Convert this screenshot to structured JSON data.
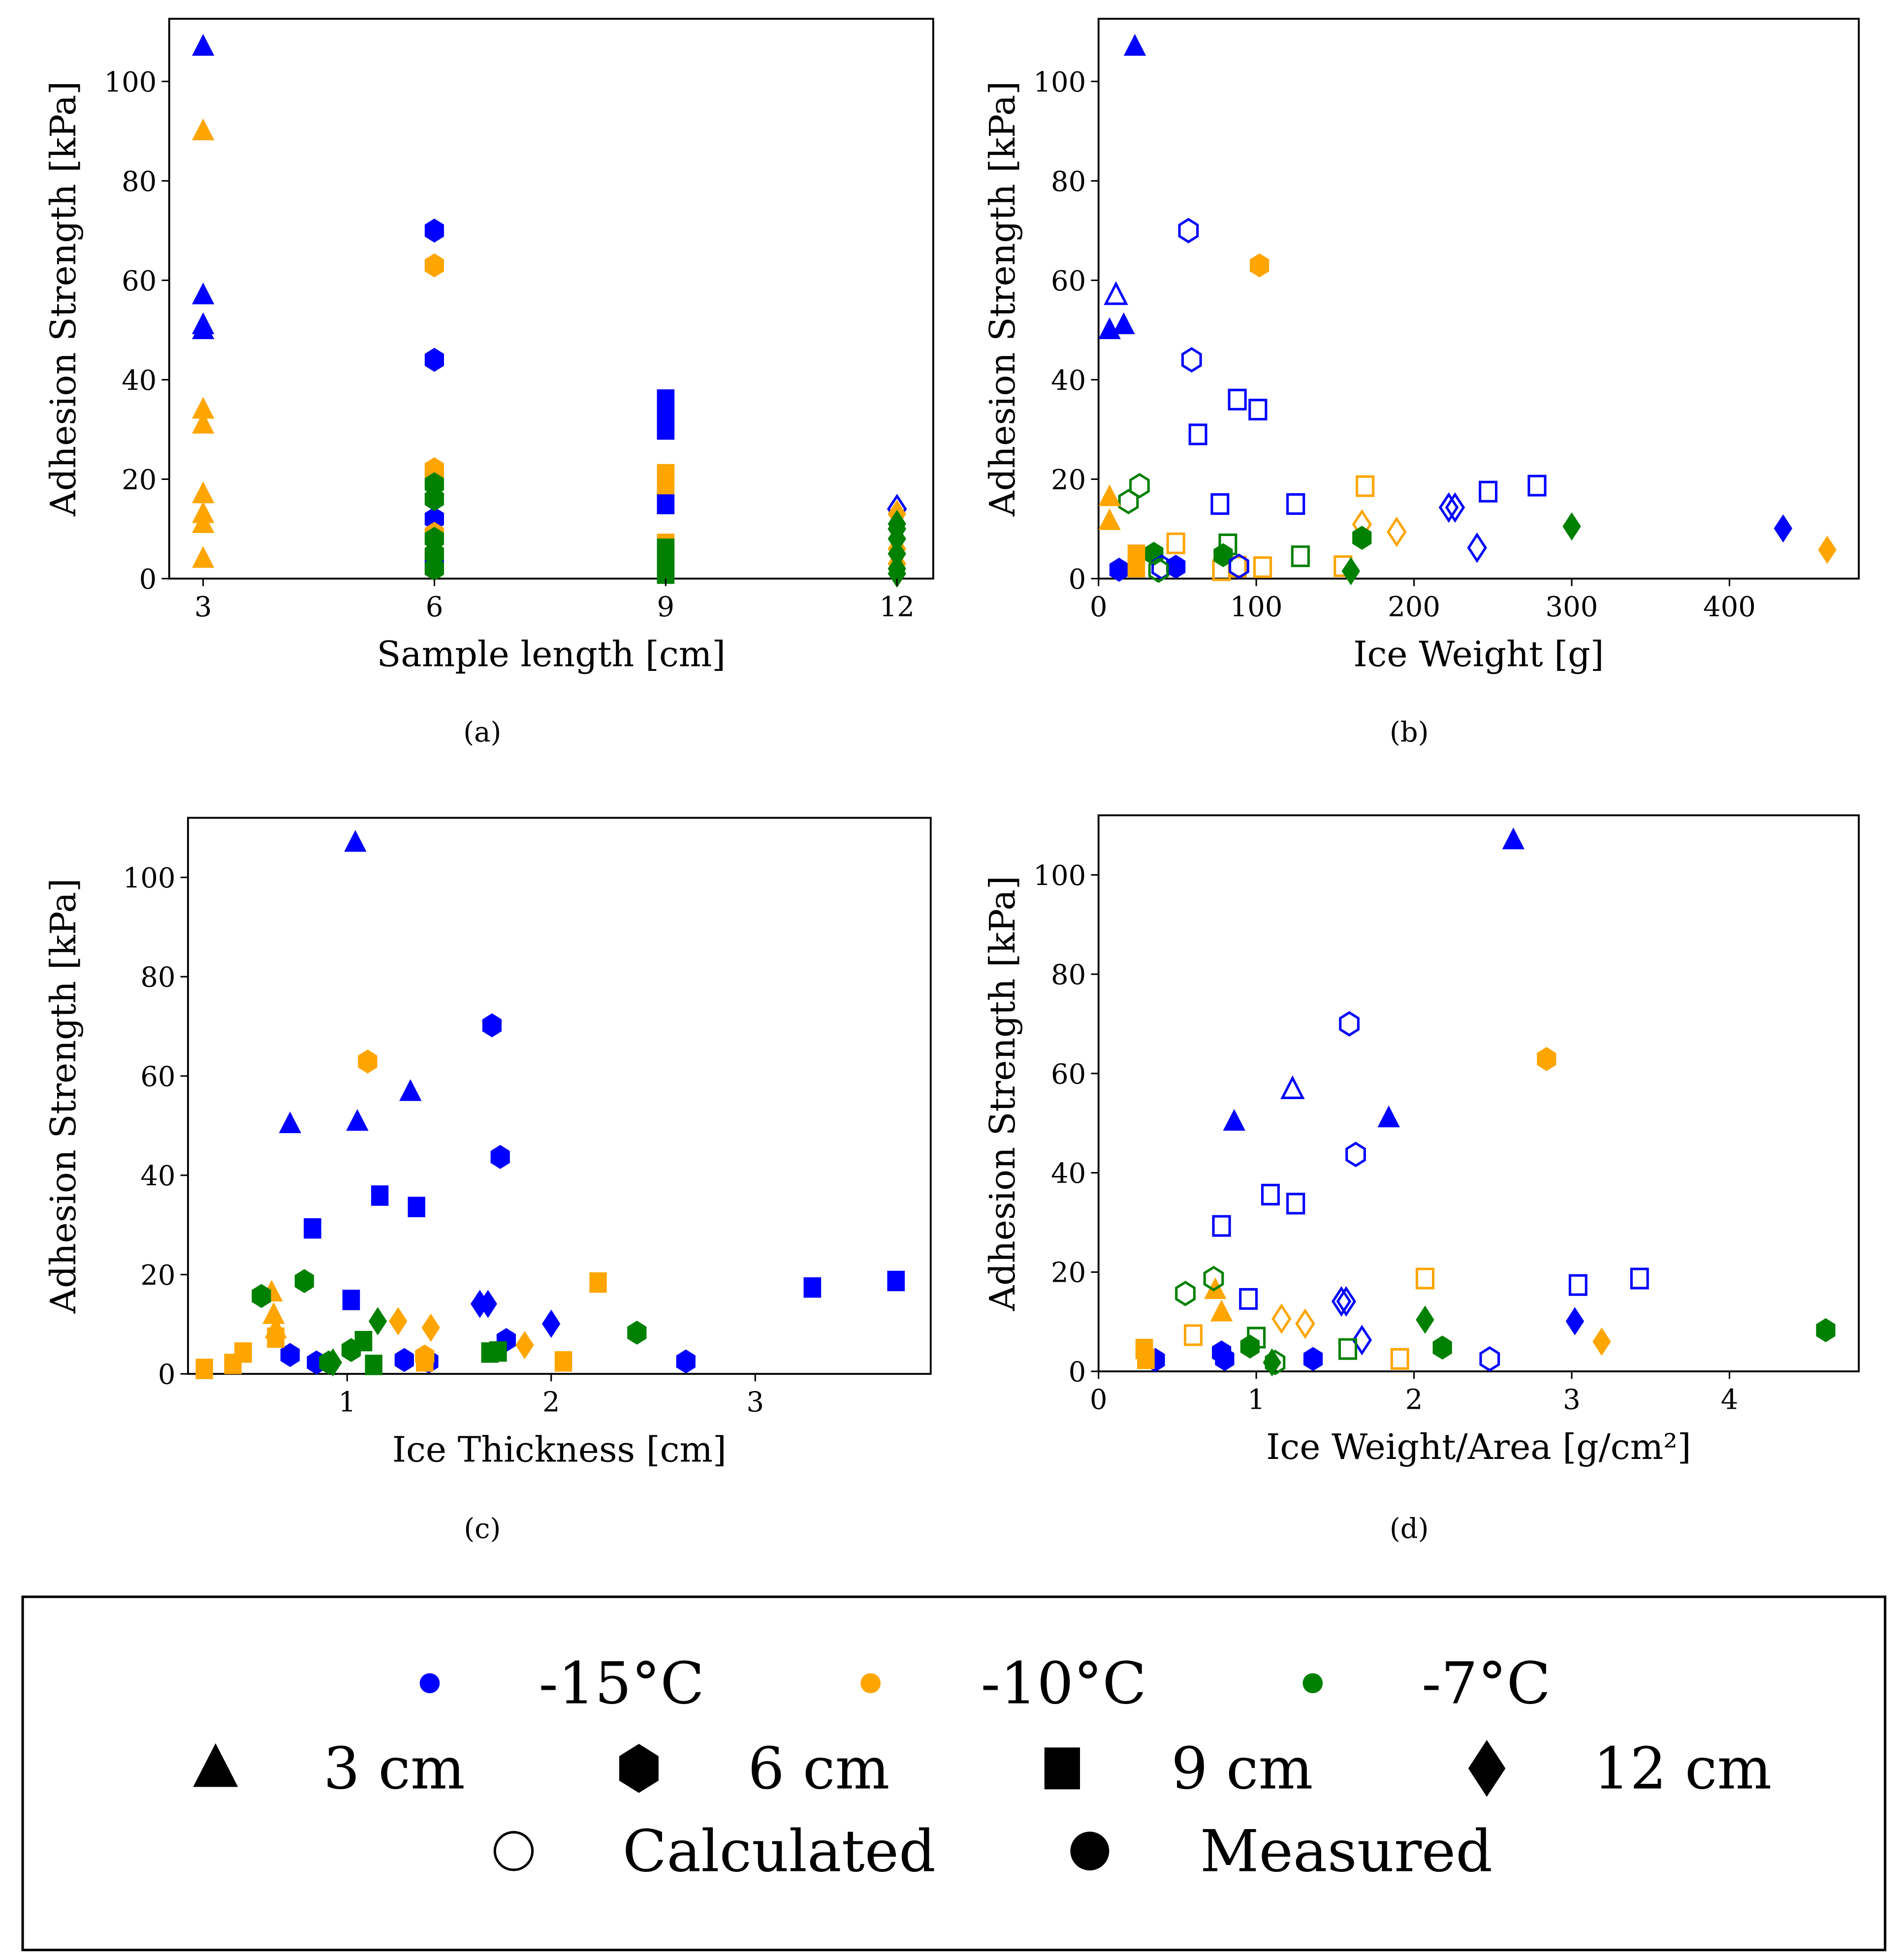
{
  "colors": {
    "b": "#0000ff",
    "o": "#ffa500",
    "g": "#008000"
  },
  "chart_data": [
    {
      "type": "scatter",
      "caption": "(a)",
      "xlabel": "Sample length [cm]",
      "ylabel": "Adhesion Strength [kPa]",
      "xlim": [
        2.56,
        12.47
      ],
      "ylim": [
        0,
        112.6
      ],
      "xticks": [
        3,
        6,
        9,
        12
      ],
      "yticks": [
        0,
        20,
        40,
        60,
        80,
        100
      ],
      "points": [
        [
          3,
          107,
          "b",
          "tri",
          1
        ],
        [
          3,
          57,
          "b",
          "tri",
          1
        ],
        [
          3,
          51,
          "b",
          "tri",
          1
        ],
        [
          3,
          50,
          "b",
          "tri",
          1
        ],
        [
          3,
          90,
          "o",
          "tri",
          1
        ],
        [
          3,
          34,
          "o",
          "tri",
          1
        ],
        [
          3,
          31,
          "o",
          "tri",
          1
        ],
        [
          3,
          17,
          "o",
          "tri",
          1
        ],
        [
          3,
          13,
          "o",
          "tri",
          1
        ],
        [
          3,
          11,
          "o",
          "tri",
          1
        ],
        [
          3,
          4,
          "o",
          "tri",
          1
        ],
        [
          6,
          70,
          "b",
          "hex",
          1
        ],
        [
          6,
          44,
          "b",
          "hex",
          1
        ],
        [
          6,
          12,
          "b",
          "hex",
          1
        ],
        [
          6,
          3,
          "b",
          "hex",
          1
        ],
        [
          6,
          63,
          "o",
          "hex",
          1
        ],
        [
          6,
          22,
          "o",
          "hex",
          1
        ],
        [
          6,
          20,
          "o",
          "hex",
          1
        ],
        [
          6,
          9,
          "o",
          "hex",
          1
        ],
        [
          6,
          5,
          "o",
          "hex",
          1
        ],
        [
          6,
          2,
          "o",
          "hex",
          1
        ],
        [
          6,
          19,
          "g",
          "hex",
          1
        ],
        [
          6,
          16,
          "g",
          "hex",
          1
        ],
        [
          6,
          8,
          "g",
          "hex",
          1
        ],
        [
          6,
          5,
          "g",
          "hex",
          1
        ],
        [
          6,
          2,
          "g",
          "hex",
          1
        ],
        [
          9,
          36,
          "b",
          "sq",
          1
        ],
        [
          9,
          34,
          "b",
          "sq",
          1
        ],
        [
          9,
          32,
          "b",
          "sq",
          1
        ],
        [
          9,
          30,
          "b",
          "sq",
          1
        ],
        [
          9,
          15,
          "b",
          "sq",
          1
        ],
        [
          9,
          21,
          "o",
          "sq",
          1
        ],
        [
          9,
          19,
          "o",
          "sq",
          1
        ],
        [
          9,
          7,
          "o",
          "sq",
          1
        ],
        [
          9,
          6,
          "g",
          "sq",
          1
        ],
        [
          9,
          5,
          "g",
          "sq",
          1
        ],
        [
          9,
          3,
          "g",
          "sq",
          1
        ],
        [
          9,
          1,
          "g",
          "sq",
          1
        ],
        [
          12,
          14,
          "b",
          "dia",
          0
        ],
        [
          12,
          10,
          "b",
          "dia",
          1
        ],
        [
          12,
          13,
          "o",
          "dia",
          1
        ],
        [
          12,
          6,
          "o",
          "dia",
          1
        ],
        [
          12,
          3,
          "o",
          "dia",
          1
        ],
        [
          12,
          11,
          "g",
          "dia",
          1
        ],
        [
          12,
          10,
          "g",
          "dia",
          1
        ],
        [
          12,
          8,
          "g",
          "dia",
          1
        ],
        [
          12,
          5,
          "g",
          "dia",
          1
        ],
        [
          12,
          2,
          "g",
          "dia",
          1
        ],
        [
          12,
          1,
          "g",
          "dia",
          1
        ]
      ]
    },
    {
      "type": "scatter",
      "caption": "(b)",
      "xlabel": "Ice Weight [g]",
      "ylabel": "Adhesion Strength [kPa]",
      "xlim": [
        0,
        482
      ],
      "ylim": [
        0,
        112.6
      ],
      "xticks": [
        0,
        100,
        200,
        300,
        400
      ],
      "yticks": [
        0,
        20,
        40,
        60,
        80,
        100
      ],
      "points": [
        [
          23,
          107,
          "b",
          "tri",
          1
        ],
        [
          11,
          57,
          "b",
          "tri",
          0
        ],
        [
          7,
          50,
          "b",
          "tri",
          1
        ],
        [
          16,
          51,
          "b",
          "tri",
          1
        ],
        [
          57,
          70,
          "b",
          "hex",
          0
        ],
        [
          59,
          44,
          "b",
          "hex",
          0
        ],
        [
          102,
          63,
          "o",
          "hex",
          1
        ],
        [
          88,
          36,
          "b",
          "sq",
          0
        ],
        [
          101,
          34,
          "b",
          "sq",
          0
        ],
        [
          63,
          29,
          "b",
          "sq",
          0
        ],
        [
          77,
          15,
          "b",
          "sq",
          0
        ],
        [
          125,
          15,
          "b",
          "sq",
          0
        ],
        [
          247,
          17.5,
          "b",
          "sq",
          0
        ],
        [
          278,
          18.7,
          "b",
          "sq",
          0
        ],
        [
          169,
          18.6,
          "o",
          "sq",
          0
        ],
        [
          26,
          18.7,
          "g",
          "hex",
          0
        ],
        [
          19,
          15.5,
          "g",
          "hex",
          0
        ],
        [
          7,
          16.4,
          "o",
          "tri",
          1
        ],
        [
          7,
          11.6,
          "o",
          "tri",
          1
        ],
        [
          167,
          10.9,
          "o",
          "dia",
          0
        ],
        [
          189,
          9.4,
          "o",
          "dia",
          0
        ],
        [
          167,
          8.2,
          "g",
          "hex",
          1
        ],
        [
          222,
          14.3,
          "b",
          "dia",
          0
        ],
        [
          226,
          14.3,
          "b",
          "dia",
          0
        ],
        [
          240,
          6.2,
          "b",
          "dia",
          0
        ],
        [
          300,
          10.5,
          "g",
          "dia",
          1
        ],
        [
          434,
          10.1,
          "b",
          "dia",
          1
        ],
        [
          462,
          5.8,
          "o",
          "dia",
          1
        ],
        [
          49,
          7.1,
          "o",
          "sq",
          0
        ],
        [
          82,
          6.9,
          "g",
          "sq",
          0
        ],
        [
          128,
          4.5,
          "g",
          "sq",
          0
        ],
        [
          104,
          2.3,
          "o",
          "sq",
          0
        ],
        [
          78,
          1.7,
          "o",
          "sq",
          0
        ],
        [
          88,
          2.4,
          "o",
          "sq",
          0
        ],
        [
          155,
          2.5,
          "o",
          "sq",
          0
        ],
        [
          35,
          5,
          "g",
          "hex",
          1
        ],
        [
          79,
          4.7,
          "g",
          "hex",
          1
        ],
        [
          160,
          1.5,
          "g",
          "dia",
          1
        ],
        [
          49,
          2.4,
          "b",
          "hex",
          1
        ],
        [
          13,
          1.8,
          "b",
          "hex",
          1
        ],
        [
          24,
          4.8,
          "o",
          "sq",
          1
        ],
        [
          24,
          2.3,
          "o",
          "sq",
          1
        ],
        [
          40,
          2.3,
          "b",
          "hex",
          0
        ],
        [
          89,
          2.5,
          "b",
          "hex",
          0
        ],
        [
          38,
          1.7,
          "g",
          "hex",
          0
        ]
      ]
    },
    {
      "type": "scatter",
      "caption": "(c)",
      "xlabel": "Ice Thickness [cm]",
      "ylabel": "Adhesion Strength [kPa]",
      "xlim": [
        0.22,
        3.86
      ],
      "ylim": [
        0,
        112
      ],
      "xticks": [
        1,
        2,
        3
      ],
      "yticks": [
        0,
        20,
        40,
        60,
        80,
        100
      ],
      "points": [
        [
          1.04,
          107,
          "b",
          "tri",
          1
        ],
        [
          1.31,
          56.8,
          "b",
          "tri",
          1
        ],
        [
          0.72,
          50.3,
          "b",
          "tri",
          1
        ],
        [
          1.05,
          50.8,
          "b",
          "tri",
          1
        ],
        [
          1.71,
          70.2,
          "b",
          "hex",
          1
        ],
        [
          1.75,
          43.7,
          "b",
          "hex",
          1
        ],
        [
          0.72,
          3.8,
          "b",
          "hex",
          1
        ],
        [
          0.85,
          2.3,
          "b",
          "hex",
          1
        ],
        [
          1.28,
          2.8,
          "b",
          "hex",
          1
        ],
        [
          1.4,
          2.5,
          "b",
          "hex",
          1
        ],
        [
          2.66,
          2.5,
          "b",
          "hex",
          1
        ],
        [
          1.78,
          6.8,
          "b",
          "hex",
          1
        ],
        [
          0.83,
          29.3,
          "b",
          "sq",
          1
        ],
        [
          1.16,
          35.9,
          "b",
          "sq",
          1
        ],
        [
          1.34,
          33.6,
          "b",
          "sq",
          1
        ],
        [
          1.02,
          14.9,
          "b",
          "sq",
          1
        ],
        [
          3.28,
          17.4,
          "b",
          "sq",
          1
        ],
        [
          3.69,
          18.7,
          "b",
          "sq",
          1
        ],
        [
          1.65,
          14.1,
          "b",
          "dia",
          1
        ],
        [
          1.69,
          14.1,
          "b",
          "dia",
          1
        ],
        [
          2.0,
          10.1,
          "b",
          "dia",
          1
        ],
        [
          1.1,
          62.9,
          "o",
          "hex",
          1
        ],
        [
          1.38,
          3.5,
          "o",
          "hex",
          1
        ],
        [
          0.63,
          16.4,
          "o",
          "tri",
          1
        ],
        [
          0.64,
          11.9,
          "o",
          "tri",
          1
        ],
        [
          0.65,
          9,
          "o",
          "tri",
          1
        ],
        [
          2.23,
          18.4,
          "o",
          "sq",
          1
        ],
        [
          0.65,
          7.3,
          "o",
          "sq",
          1
        ],
        [
          0.49,
          4.3,
          "o",
          "sq",
          1
        ],
        [
          0.44,
          2,
          "o",
          "sq",
          1
        ],
        [
          0.3,
          1,
          "o",
          "sq",
          1
        ],
        [
          2.06,
          2.5,
          "o",
          "sq",
          1
        ],
        [
          1.38,
          2.5,
          "o",
          "sq",
          1
        ],
        [
          1.25,
          10.6,
          "o",
          "dia",
          1
        ],
        [
          1.41,
          9.3,
          "o",
          "dia",
          1
        ],
        [
          1.87,
          5.8,
          "o",
          "dia",
          1
        ],
        [
          0.58,
          15.7,
          "g",
          "hex",
          1
        ],
        [
          0.79,
          18.7,
          "g",
          "hex",
          1
        ],
        [
          2.42,
          8.3,
          "g",
          "hex",
          1
        ],
        [
          1.02,
          4.8,
          "g",
          "hex",
          1
        ],
        [
          0.91,
          2.3,
          "g",
          "hex",
          1
        ],
        [
          1.08,
          6.6,
          "g",
          "sq",
          1
        ],
        [
          1.7,
          4.3,
          "g",
          "sq",
          1
        ],
        [
          1.74,
          4.5,
          "g",
          "sq",
          1
        ],
        [
          1.13,
          1.8,
          "g",
          "sq",
          1
        ],
        [
          1.15,
          10.6,
          "g",
          "dia",
          1
        ],
        [
          0.93,
          2.3,
          "g",
          "dia",
          1
        ]
      ]
    },
    {
      "type": "scatter",
      "caption": "(d)",
      "xlabel": "Ice Weight/Area [g/cm²]",
      "ylabel": "Adhesion Strength [kPa]",
      "xlim": [
        0,
        4.82
      ],
      "ylim": [
        0,
        112
      ],
      "xticks": [
        0,
        1,
        2,
        3,
        4
      ],
      "yticks": [
        0,
        20,
        40,
        60,
        80,
        100
      ],
      "points": [
        [
          2.63,
          107,
          "b",
          "tri",
          1
        ],
        [
          1.23,
          56.8,
          "b",
          "tri",
          0
        ],
        [
          0.86,
          50.3,
          "b",
          "tri",
          1
        ],
        [
          1.84,
          51,
          "b",
          "tri",
          1
        ],
        [
          1.59,
          70,
          "b",
          "hex",
          0
        ],
        [
          1.63,
          43.7,
          "b",
          "hex",
          0
        ],
        [
          2.48,
          2.5,
          "b",
          "hex",
          0
        ],
        [
          0.78,
          29.3,
          "b",
          "sq",
          0
        ],
        [
          1.09,
          35.6,
          "b",
          "sq",
          0
        ],
        [
          1.25,
          33.8,
          "b",
          "sq",
          0
        ],
        [
          0.95,
          14.6,
          "b",
          "sq",
          0
        ],
        [
          3.04,
          17.4,
          "b",
          "sq",
          0
        ],
        [
          3.43,
          18.7,
          "b",
          "sq",
          0
        ],
        [
          1.54,
          14.1,
          "b",
          "dia",
          0
        ],
        [
          1.57,
          14.1,
          "b",
          "dia",
          0
        ],
        [
          1.67,
          6.3,
          "b",
          "dia",
          0
        ],
        [
          3.02,
          10.1,
          "b",
          "dia",
          1
        ],
        [
          0.36,
          2.3,
          "b",
          "hex",
          1
        ],
        [
          0.78,
          3.8,
          "b",
          "hex",
          1
        ],
        [
          1.36,
          2.5,
          "b",
          "hex",
          1
        ],
        [
          0.8,
          2.5,
          "b",
          "hex",
          1
        ],
        [
          2.84,
          62.9,
          "o",
          "hex",
          1
        ],
        [
          0.74,
          16.4,
          "o",
          "tri",
          1
        ],
        [
          0.78,
          11.9,
          "o",
          "tri",
          1
        ],
        [
          2.07,
          18.7,
          "o",
          "sq",
          0
        ],
        [
          0.6,
          7.3,
          "o",
          "sq",
          0
        ],
        [
          1.91,
          2.5,
          "o",
          "sq",
          0
        ],
        [
          0.29,
          4.5,
          "o",
          "sq",
          1
        ],
        [
          0.3,
          2.5,
          "o",
          "sq",
          1
        ],
        [
          1.16,
          10.6,
          "o",
          "dia",
          0
        ],
        [
          1.31,
          9.6,
          "o",
          "dia",
          0
        ],
        [
          3.19,
          6,
          "o",
          "dia",
          1
        ],
        [
          0.55,
          15.7,
          "g",
          "hex",
          0
        ],
        [
          0.73,
          18.7,
          "g",
          "hex",
          0
        ],
        [
          4.61,
          8.3,
          "g",
          "hex",
          1
        ],
        [
          2.18,
          4.8,
          "g",
          "hex",
          1
        ],
        [
          0.96,
          5,
          "g",
          "hex",
          1
        ],
        [
          2.07,
          10.4,
          "g",
          "dia",
          1
        ],
        [
          1.1,
          1.8,
          "g",
          "dia",
          1
        ],
        [
          1.0,
          6.8,
          "g",
          "sq",
          0
        ],
        [
          1.58,
          4.5,
          "g",
          "sq",
          0
        ],
        [
          1.12,
          1.8,
          "g",
          "hex",
          0
        ]
      ]
    }
  ],
  "legend": {
    "temperatures": [
      {
        "label": "-15°C",
        "color": "b"
      },
      {
        "label": "-10°C",
        "color": "o"
      },
      {
        "label": "-7°C",
        "color": "g"
      }
    ],
    "lengths": [
      {
        "label": "3 cm",
        "shape": "tri"
      },
      {
        "label": "6 cm",
        "shape": "hex"
      },
      {
        "label": "9 cm",
        "shape": "sq"
      },
      {
        "label": "12 cm",
        "shape": "dia"
      }
    ],
    "methods": [
      {
        "label": "Calculated",
        "filled": 0
      },
      {
        "label": "Measured",
        "filled": 1
      }
    ]
  }
}
